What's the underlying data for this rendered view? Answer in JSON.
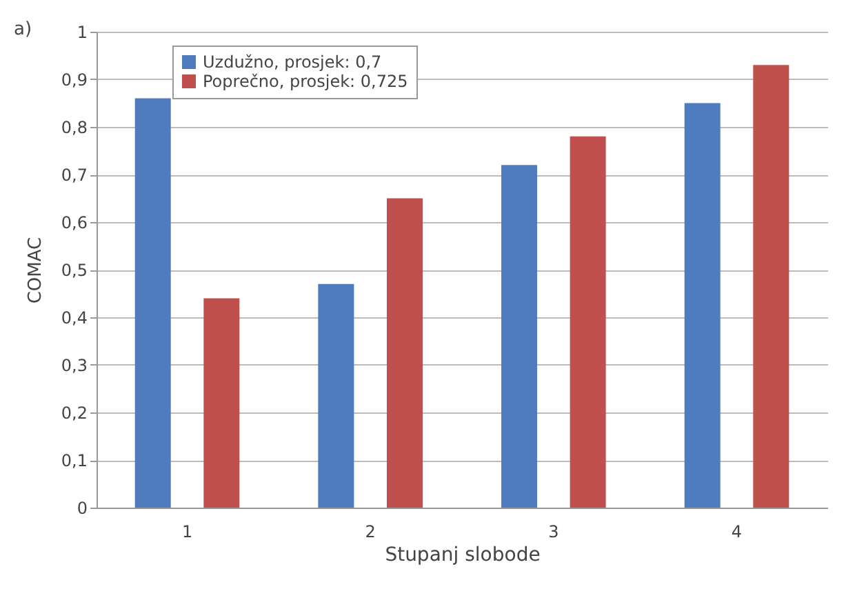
{
  "chart_data": {
    "type": "bar",
    "xlabel": "Stupanj slobode",
    "ylabel": "COMAC",
    "categories": [
      "1",
      "2",
      "3",
      "4"
    ],
    "series": [
      {
        "name": "Uzdužno, prosjek: 0,7",
        "color": "#4f7bbf",
        "values": [
          0.86,
          0.47,
          0.72,
          0.85
        ]
      },
      {
        "name": "Poprečno, prosjek: 0,725",
        "color": "#c0504d",
        "values": [
          0.44,
          0.65,
          0.78,
          0.93
        ]
      }
    ],
    "ylim": [
      0,
      1
    ],
    "yticks": [
      0,
      {
        "value": 0.1,
        "label": "0,1"
      },
      {
        "value": 0.2,
        "label": "0,2"
      },
      {
        "value": 0.3,
        "label": "0,3"
      },
      {
        "value": 0.4,
        "label": "0,4"
      },
      {
        "value": 0.5,
        "label": "0,5"
      },
      {
        "value": 0.6,
        "label": "0,6"
      },
      {
        "value": 0.7,
        "label": "0,7"
      },
      {
        "value": 0.8,
        "label": "0,8"
      },
      {
        "value": 0.9,
        "label": "0,9"
      },
      1
    ],
    "grid": "y",
    "legend": "top left",
    "annotations": [
      "a)"
    ]
  }
}
